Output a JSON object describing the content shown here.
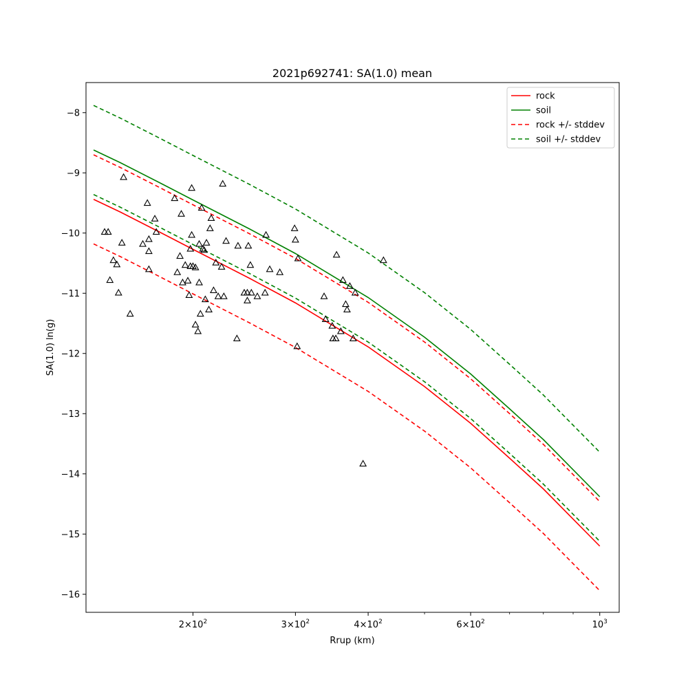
{
  "chart_data": {
    "type": "scatter",
    "title": "2021p692741: SA(1.0) mean",
    "xlabel": "Rrup (km)",
    "ylabel": "SA(1.0) ln(g)",
    "x_scale": "log",
    "xlim": [
      131,
      1080
    ],
    "ylim": [
      -16.3,
      -7.5
    ],
    "x_major_ticks": [
      {
        "value": 200,
        "base": "2×10",
        "exp": "2"
      },
      {
        "value": 300,
        "base": "3×10",
        "exp": "2"
      },
      {
        "value": 400,
        "base": "4×10",
        "exp": "2"
      },
      {
        "value": 600,
        "base": "6×10",
        "exp": "2"
      },
      {
        "value": 1000,
        "base": "10",
        "exp": "3"
      }
    ],
    "x_minor_ticks": [
      500,
      700,
      800,
      900
    ],
    "y_ticks": [
      {
        "value": -8,
        "label": "−8"
      },
      {
        "value": -9,
        "label": "−9"
      },
      {
        "value": -10,
        "label": "−10"
      },
      {
        "value": -11,
        "label": "−11"
      },
      {
        "value": -12,
        "label": "−12"
      },
      {
        "value": -13,
        "label": "−13"
      },
      {
        "value": -14,
        "label": "−14"
      },
      {
        "value": -15,
        "label": "−15"
      },
      {
        "value": -16,
        "label": "−16"
      }
    ],
    "grid": false,
    "legend_position": "top-right",
    "curves_x": [
      135,
      150,
      175,
      200,
      250,
      300,
      400,
      500,
      600,
      700,
      800,
      1000
    ],
    "series": [
      {
        "name": "rock",
        "style": "solid",
        "color": "#ff0000",
        "y": [
          -9.44,
          -9.65,
          -9.98,
          -10.27,
          -10.75,
          -11.16,
          -11.89,
          -12.55,
          -13.16,
          -13.74,
          -14.25,
          -15.2
        ]
      },
      {
        "name": "soil",
        "style": "solid",
        "color": "#008000",
        "y": [
          -8.62,
          -8.83,
          -9.16,
          -9.45,
          -9.93,
          -10.34,
          -11.07,
          -11.73,
          -12.34,
          -12.92,
          -13.43,
          -14.38
        ]
      },
      {
        "name": "rock +/- stddev",
        "style": "dashed",
        "color": "#ff0000",
        "y_upper": [
          -8.7,
          -8.91,
          -9.24,
          -9.53,
          -10.01,
          -10.42,
          -11.15,
          -11.81,
          -12.42,
          -13.0,
          -13.51,
          -14.46
        ],
        "y_lower": [
          -10.18,
          -10.39,
          -10.72,
          -11.01,
          -11.49,
          -11.9,
          -12.63,
          -13.29,
          -13.9,
          -14.48,
          -14.99,
          -15.94
        ]
      },
      {
        "name": "soil +/- stddev",
        "style": "dashed",
        "color": "#008000",
        "y_upper": [
          -7.88,
          -8.09,
          -8.42,
          -8.71,
          -9.19,
          -9.6,
          -10.33,
          -10.99,
          -11.6,
          -12.18,
          -12.69,
          -13.64
        ],
        "y_lower": [
          -9.36,
          -9.57,
          -9.9,
          -10.19,
          -10.67,
          -11.08,
          -11.81,
          -12.47,
          -13.08,
          -13.66,
          -14.17,
          -15.12
        ]
      }
    ],
    "observations": [
      [
        141,
        -9.98
      ],
      [
        143,
        -9.98
      ],
      [
        144,
        -10.78
      ],
      [
        146,
        -10.45
      ],
      [
        148,
        -10.52
      ],
      [
        149,
        -10.99
      ],
      [
        151,
        -10.16
      ],
      [
        152,
        -9.07
      ],
      [
        156,
        -11.34
      ],
      [
        164,
        -10.18
      ],
      [
        167,
        -9.5
      ],
      [
        168,
        -10.1
      ],
      [
        168,
        -10.3
      ],
      [
        168,
        -10.6
      ],
      [
        172,
        -9.76
      ],
      [
        173,
        -9.98
      ],
      [
        186,
        -9.42
      ],
      [
        188,
        -10.65
      ],
      [
        190,
        -10.38
      ],
      [
        191,
        -9.68
      ],
      [
        192,
        -10.82
      ],
      [
        194,
        -10.53
      ],
      [
        196,
        -10.79
      ],
      [
        197,
        -11.03
      ],
      [
        198,
        -10.55
      ],
      [
        198,
        -10.26
      ],
      [
        199,
        -9.25
      ],
      [
        199,
        -10.03
      ],
      [
        200,
        -10.55
      ],
      [
        202,
        -11.52
      ],
      [
        202,
        -10.57
      ],
      [
        204,
        -11.63
      ],
      [
        205,
        -10.82
      ],
      [
        205,
        -10.18
      ],
      [
        206,
        -11.34
      ],
      [
        207,
        -9.58
      ],
      [
        208,
        -10.26
      ],
      [
        209,
        -10.28
      ],
      [
        210,
        -11.1
      ],
      [
        211,
        -10.16
      ],
      [
        213,
        -11.27
      ],
      [
        214,
        -9.92
      ],
      [
        215,
        -9.75
      ],
      [
        217,
        -10.95
      ],
      [
        219,
        -10.49
      ],
      [
        221,
        -11.05
      ],
      [
        224,
        -10.56
      ],
      [
        225,
        -9.18
      ],
      [
        226,
        -11.05
      ],
      [
        228,
        -10.13
      ],
      [
        238,
        -11.75
      ],
      [
        239,
        -10.21
      ],
      [
        245,
        -10.99
      ],
      [
        248,
        -10.99
      ],
      [
        248,
        -11.12
      ],
      [
        249,
        -10.21
      ],
      [
        251,
        -10.53
      ],
      [
        252,
        -10.99
      ],
      [
        258,
        -11.05
      ],
      [
        266,
        -10.99
      ],
      [
        267,
        -10.03
      ],
      [
        271,
        -10.6
      ],
      [
        282,
        -10.65
      ],
      [
        299,
        -9.92
      ],
      [
        300,
        -10.11
      ],
      [
        302,
        -11.88
      ],
      [
        303,
        -10.42
      ],
      [
        336,
        -11.05
      ],
      [
        338,
        -11.43
      ],
      [
        347,
        -11.54
      ],
      [
        348,
        -11.75
      ],
      [
        352,
        -11.75
      ],
      [
        353,
        -10.36
      ],
      [
        359,
        -11.63
      ],
      [
        362,
        -10.78
      ],
      [
        366,
        -11.18
      ],
      [
        368,
        -11.27
      ],
      [
        372,
        -10.88
      ],
      [
        377,
        -11.75
      ],
      [
        380,
        -10.99
      ],
      [
        392,
        -13.83
      ],
      [
        425,
        -10.45
      ]
    ]
  }
}
